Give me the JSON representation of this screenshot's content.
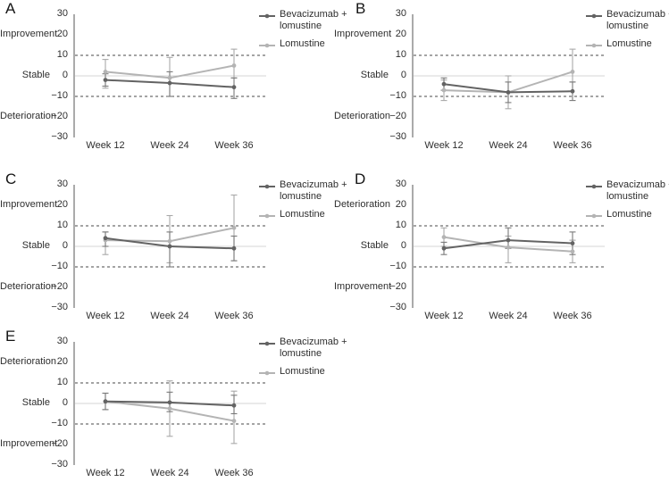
{
  "figure": {
    "background_color": "#ffffff",
    "accent_colors": {
      "series_dark": "#636363",
      "series_light": "#b4b4b4",
      "error_bar_dark": "#7a7a7a",
      "error_bar_light": "#a9a9a9",
      "reference_dash": "#4a4a4a",
      "zero_line": "#d4d4d4",
      "axis_line": "#878787",
      "text": "#2e2e2e"
    }
  },
  "chart_data": [
    {
      "type": "line",
      "panel_label": "A",
      "categories": [
        "Week 12",
        "Week 24",
        "Week 36"
      ],
      "ylim": [
        -30,
        30
      ],
      "grid": false,
      "legend_position": "top-right",
      "y_ticks": [
        {
          "label": "30",
          "value": 30
        },
        {
          "label": "20",
          "value": 20
        },
        {
          "label": "10",
          "value": 10
        },
        {
          "label": "0",
          "value": 0
        },
        {
          "label": "−10",
          "value": -10
        },
        {
          "label": "−20",
          "value": -20
        },
        {
          "label": "−30",
          "value": -30
        }
      ],
      "y_region_labels": [
        {
          "text": "Improvement",
          "value": 20
        },
        {
          "text": "Stable",
          "value": 0
        },
        {
          "text": "Deterioration",
          "value": -20
        }
      ],
      "reference_lines": [
        10,
        -10
      ],
      "zero_line": 0,
      "series": [
        {
          "name": "Bevacizumab + lomustine",
          "color": "#636363",
          "error_color": "#7a7a7a",
          "values": [
            -2,
            -3.5,
            -5.5
          ],
          "error_low": [
            -5,
            -10,
            -11
          ],
          "error_high": [
            1,
            2,
            -1
          ]
        },
        {
          "name": "Lomustine",
          "color": "#b4b4b4",
          "error_color": "#a9a9a9",
          "values": [
            2,
            -1,
            5
          ],
          "error_low": [
            -6,
            -10,
            -1
          ],
          "error_high": [
            8,
            9,
            13
          ]
        }
      ]
    },
    {
      "type": "line",
      "panel_label": "B",
      "categories": [
        "Week 12",
        "Week 24",
        "Week 36"
      ],
      "ylim": [
        -30,
        30
      ],
      "grid": false,
      "legend_position": "top-right",
      "y_ticks": [
        {
          "label": "30",
          "value": 30
        },
        {
          "label": "20",
          "value": 20
        },
        {
          "label": "10",
          "value": 10
        },
        {
          "label": "0",
          "value": 0
        },
        {
          "label": "−10",
          "value": -10
        },
        {
          "label": "−20",
          "value": -20
        },
        {
          "label": "−30",
          "value": -30
        }
      ],
      "y_region_labels": [
        {
          "text": "Improvement",
          "value": 20
        },
        {
          "text": "Stable",
          "value": 0
        },
        {
          "text": "Deterioration",
          "value": -20
        }
      ],
      "reference_lines": [
        10,
        -10
      ],
      "zero_line": 0,
      "series": [
        {
          "name": "Bevacizumab + lomustine",
          "color": "#636363",
          "error_color": "#7a7a7a",
          "values": [
            -4,
            -8,
            -7.5
          ],
          "error_low": [
            -7,
            -13,
            -12
          ],
          "error_high": [
            -1,
            -3,
            -3
          ]
        },
        {
          "name": "Lomustine",
          "color": "#b4b4b4",
          "error_color": "#a9a9a9",
          "values": [
            -7,
            -8,
            2
          ],
          "error_low": [
            -12,
            -16,
            -3
          ],
          "error_high": [
            -2,
            0,
            13
          ]
        }
      ]
    },
    {
      "type": "line",
      "panel_label": "C",
      "categories": [
        "Week 12",
        "Week 24",
        "Week 36"
      ],
      "ylim": [
        -30,
        30
      ],
      "grid": false,
      "legend_position": "top-right",
      "y_ticks": [
        {
          "label": "30",
          "value": 30
        },
        {
          "label": "20",
          "value": 20
        },
        {
          "label": "10",
          "value": 10
        },
        {
          "label": "0",
          "value": 0
        },
        {
          "label": "−10",
          "value": -10
        },
        {
          "label": "−20",
          "value": -20
        },
        {
          "label": "−30",
          "value": -30
        }
      ],
      "y_region_labels": [
        {
          "text": "Improvement",
          "value": 20
        },
        {
          "text": "Stable",
          "value": 0
        },
        {
          "text": "Deterioration",
          "value": -20
        }
      ],
      "reference_lines": [
        10,
        -10
      ],
      "zero_line": 0,
      "series": [
        {
          "name": "Bevacizumab + lomustine",
          "color": "#636363",
          "error_color": "#7a7a7a",
          "values": [
            4,
            0,
            -1
          ],
          "error_low": [
            0,
            -10,
            -7
          ],
          "error_high": [
            7,
            7,
            5
          ]
        },
        {
          "name": "Lomustine",
          "color": "#b4b4b4",
          "error_color": "#a9a9a9",
          "values": [
            3,
            2.5,
            9
          ],
          "error_low": [
            -4,
            -8,
            -7
          ],
          "error_high": [
            7,
            15,
            25
          ]
        }
      ]
    },
    {
      "type": "line",
      "panel_label": "D",
      "categories": [
        "Week 12",
        "Week 24",
        "Week 36"
      ],
      "ylim": [
        -30,
        30
      ],
      "grid": false,
      "legend_position": "top-right",
      "y_ticks": [
        {
          "label": "30",
          "value": 30
        },
        {
          "label": "20",
          "value": 20
        },
        {
          "label": "10",
          "value": 10
        },
        {
          "label": "0",
          "value": 0
        },
        {
          "label": "−10",
          "value": -10
        },
        {
          "label": "−20",
          "value": -20
        },
        {
          "label": "−30",
          "value": -30
        }
      ],
      "y_region_labels": [
        {
          "text": "Deterioration",
          "value": 20
        },
        {
          "text": "Stable",
          "value": 0
        },
        {
          "text": "Improvement",
          "value": -20
        }
      ],
      "reference_lines": [
        10,
        -10
      ],
      "zero_line": 0,
      "series": [
        {
          "name": "Bevacizumab + lomustine",
          "color": "#636363",
          "error_color": "#7a7a7a",
          "values": [
            -1,
            3,
            1.5
          ],
          "error_low": [
            -4,
            -1,
            -4
          ],
          "error_high": [
            2,
            9,
            7
          ]
        },
        {
          "name": "Lomustine",
          "color": "#b4b4b4",
          "error_color": "#a9a9a9",
          "values": [
            4.5,
            -0.5,
            -2.5
          ],
          "error_low": [
            0,
            -8,
            -8
          ],
          "error_high": [
            9,
            5,
            3
          ]
        }
      ]
    },
    {
      "type": "line",
      "panel_label": "E",
      "categories": [
        "Week 12",
        "Week 24",
        "Week 36"
      ],
      "ylim": [
        -30,
        30
      ],
      "grid": false,
      "legend_position": "top-right",
      "y_ticks": [
        {
          "label": "30",
          "value": 30
        },
        {
          "label": "20",
          "value": 20
        },
        {
          "label": "10",
          "value": 10
        },
        {
          "label": "0",
          "value": 0
        },
        {
          "label": "−10",
          "value": -10
        },
        {
          "label": "−20",
          "value": -20
        },
        {
          "label": "−30",
          "value": -30
        }
      ],
      "y_region_labels": [
        {
          "text": "Deterioration",
          "value": 20
        },
        {
          "text": "Stable",
          "value": 0
        },
        {
          "text": "Improvement",
          "value": -20
        }
      ],
      "reference_lines": [
        10,
        -10
      ],
      "zero_line": 0,
      "series": [
        {
          "name": "Bevacizumab + lomustine",
          "color": "#636363",
          "error_color": "#7a7a7a",
          "values": [
            1,
            0.5,
            -1
          ],
          "error_low": [
            -3,
            -4,
            -5
          ],
          "error_high": [
            5,
            5.5,
            4
          ]
        },
        {
          "name": "Lomustine",
          "color": "#b4b4b4",
          "error_color": "#a9a9a9",
          "values": [
            1,
            -2.5,
            -8.5
          ],
          "error_low": [
            -3,
            -16,
            -19.5
          ],
          "error_high": [
            5,
            11,
            6
          ]
        }
      ]
    }
  ]
}
